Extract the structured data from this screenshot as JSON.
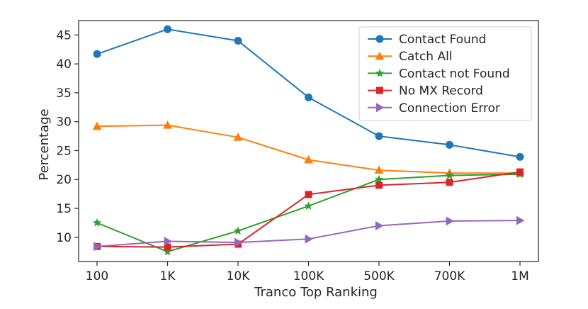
{
  "chart_data": {
    "type": "line",
    "title": "",
    "xlabel": "Tranco Top Ranking",
    "ylabel": "Percentage",
    "categories": [
      "100",
      "1K",
      "10K",
      "100K",
      "500K",
      "700K",
      "1M"
    ],
    "ylim": [
      5.8,
      47.5
    ],
    "yticks": [
      10,
      15,
      20,
      25,
      30,
      35,
      40,
      45
    ],
    "grid": false,
    "legend_position": "top-right",
    "series": [
      {
        "name": "Contact Found",
        "color": "#1f77b4",
        "marker": "circle",
        "values": [
          41.7,
          46.0,
          44.0,
          34.2,
          27.5,
          26.0,
          23.9
        ]
      },
      {
        "name": "Catch All",
        "color": "#ff7f0e",
        "marker": "triangle-up",
        "values": [
          29.2,
          29.4,
          27.3,
          23.4,
          21.6,
          21.1,
          21.1
        ]
      },
      {
        "name": "Contact not Found",
        "color": "#2ca02c",
        "marker": "star",
        "values": [
          12.5,
          7.5,
          11.1,
          15.4,
          20.0,
          20.7,
          20.9
        ]
      },
      {
        "name": "No MX Record",
        "color": "#d62728",
        "marker": "square",
        "values": [
          8.4,
          8.3,
          8.8,
          17.4,
          19.0,
          19.5,
          21.3
        ]
      },
      {
        "name": "Connection Error",
        "color": "#9467bd",
        "marker": "triangle-right",
        "values": [
          8.4,
          9.3,
          9.1,
          9.7,
          12.0,
          12.8,
          12.9
        ]
      }
    ]
  }
}
